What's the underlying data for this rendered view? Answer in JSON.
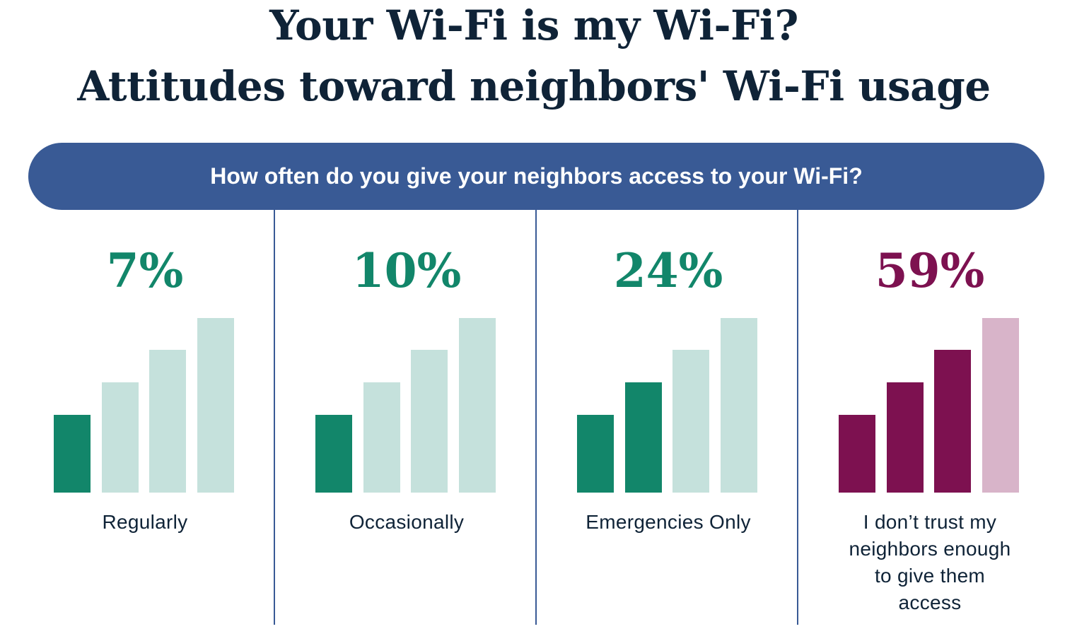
{
  "title_line1": "Your Wi-Fi is my Wi-Fi?",
  "title_line2": "Attitudes toward neighbors' Wi-Fi usage",
  "question": "How often do you give your neighbors access to your Wi-Fi?",
  "colors": {
    "title": "#0f2337",
    "banner": "#395a95",
    "green": "#12866a",
    "green_light": "#c5e1dc",
    "maroon": "#7d1150",
    "maroon_light": "#d8b4c9"
  },
  "chart_data": {
    "type": "bar",
    "title": "How often do you give your neighbors access to your Wi-Fi?",
    "categories": [
      "Regularly",
      "Occasionally",
      "Emergencies Only",
      "I don’t trust my neighbors enough to give them access"
    ],
    "values": [
      7,
      10,
      24,
      59
    ],
    "value_labels": [
      "7%",
      "10%",
      "24%",
      "59%"
    ],
    "unit": "%",
    "icon": "wifi-signal-strength-bars",
    "filled_bars": [
      1,
      1,
      2,
      3
    ],
    "total_bars": 4,
    "panel_colors": [
      "green",
      "green",
      "green",
      "maroon"
    ]
  }
}
